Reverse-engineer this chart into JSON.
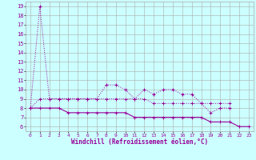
{
  "xlabel": "Windchill (Refroidissement éolien,°C)",
  "bg_color": "#ccffff",
  "grid_color": "#aaaaaa",
  "line_color": "#990099",
  "x": [
    0,
    1,
    2,
    3,
    4,
    5,
    6,
    7,
    8,
    9,
    10,
    11,
    12,
    13,
    14,
    15,
    16,
    17,
    18,
    19,
    20,
    21,
    22,
    23
  ],
  "line1": [
    8,
    19,
    9.0,
    9.0,
    9.0,
    9.0,
    9.0,
    9.0,
    10.5,
    10.5,
    10.0,
    9.0,
    10.0,
    9.5,
    10.0,
    10.0,
    9.5,
    9.5,
    8.5,
    7.5,
    8.0,
    8.0,
    null,
    null
  ],
  "line2": [
    8,
    9,
    9,
    9,
    9,
    9,
    9,
    9,
    9,
    9,
    9,
    9,
    9,
    8.5,
    8.5,
    8.5,
    8.5,
    8.5,
    8.5,
    8.5,
    8.5,
    8.5,
    null,
    null
  ],
  "line3": [
    8,
    8,
    8,
    8,
    7.5,
    7.5,
    7.5,
    7.5,
    7.5,
    7.5,
    7.5,
    7.0,
    7.0,
    7.0,
    7.0,
    7.0,
    7.0,
    7.0,
    7.0,
    6.5,
    6.5,
    6.5,
    6.0,
    6.0
  ],
  "ylim": [
    5.5,
    19.5
  ],
  "yticks": [
    6,
    7,
    8,
    9,
    10,
    11,
    12,
    13,
    14,
    15,
    16,
    17,
    18,
    19
  ],
  "xlim": [
    -0.5,
    23.5
  ],
  "xticks": [
    0,
    1,
    2,
    3,
    4,
    5,
    6,
    7,
    8,
    9,
    10,
    11,
    12,
    13,
    14,
    15,
    16,
    17,
    18,
    19,
    20,
    21,
    22,
    23
  ]
}
